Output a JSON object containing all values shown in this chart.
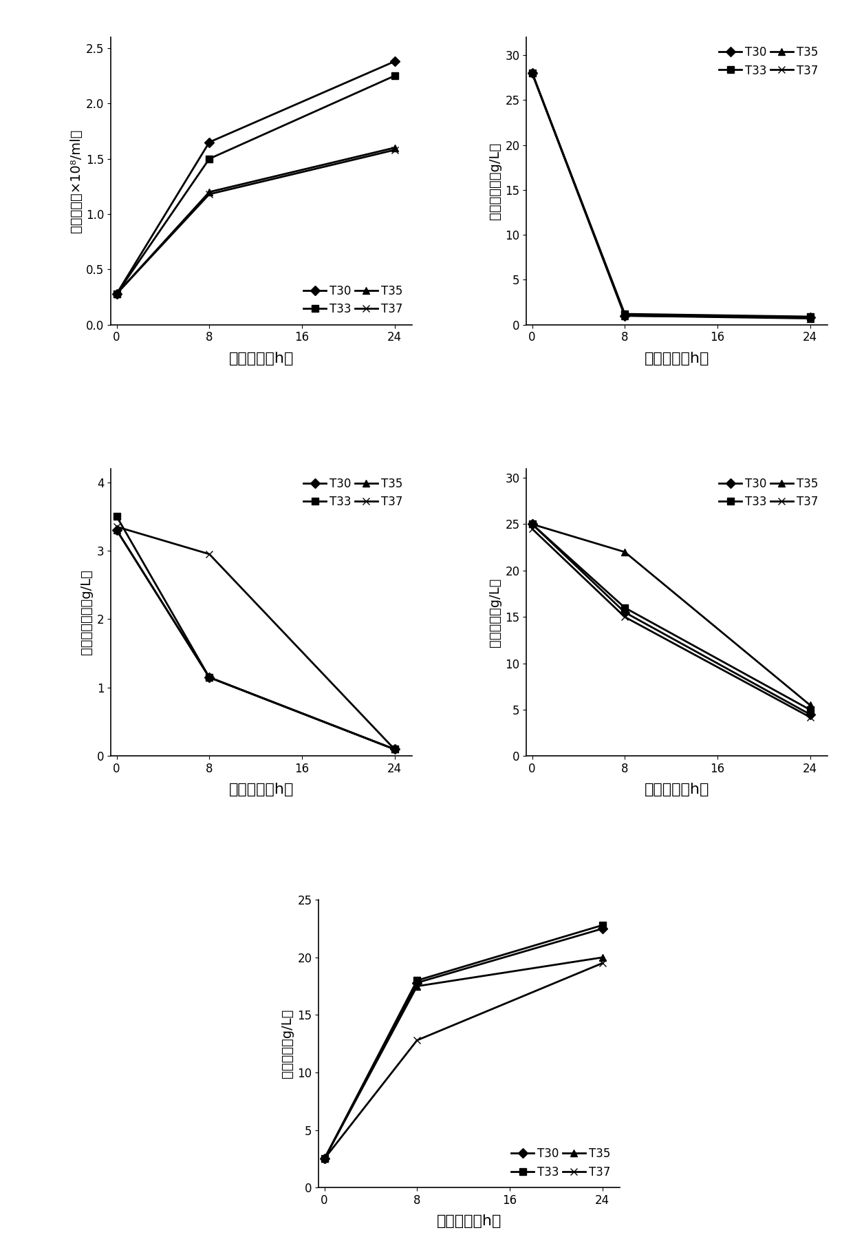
{
  "time": [
    0,
    8,
    24
  ],
  "plot1": {
    "ylabel": "细胞浓度（×10⁸/ml）",
    "ylabel_lines": [
      "细胞浓度",
      "（×10⁸/ml）"
    ],
    "xlabel": "发酵时间（h）",
    "ylim": [
      0,
      2.6
    ],
    "yticks": [
      0.0,
      0.5,
      1.0,
      1.5,
      2.0,
      2.5
    ],
    "xticks": [
      0,
      8,
      16,
      24
    ],
    "legend_loc": "lower right",
    "series": {
      "T30": [
        0.28,
        1.65,
        2.38
      ],
      "T33": [
        0.28,
        1.5,
        2.25
      ],
      "T35": [
        0.28,
        1.2,
        1.6
      ],
      "T37": [
        0.28,
        1.18,
        1.58
      ]
    }
  },
  "plot2": {
    "ylabel": "葡萄糖浓度（g/L）",
    "ylabel_lines": [
      "葡萄糖浓度",
      "（g/L）"
    ],
    "xlabel": "发酵时间（h）",
    "ylim": [
      0,
      32
    ],
    "yticks": [
      0.0,
      5.0,
      10.0,
      15.0,
      20.0,
      25.0,
      30.0
    ],
    "xticks": [
      0,
      8,
      16,
      24
    ],
    "legend_loc": "upper right",
    "series": {
      "T30": [
        28.0,
        1.0,
        0.8
      ],
      "T33": [
        28.0,
        1.2,
        0.9
      ],
      "T35": [
        28.0,
        1.0,
        0.7
      ],
      "T37": [
        28.0,
        1.1,
        0.85
      ]
    }
  },
  "plot3": {
    "ylabel": "纤维二糖浓度（g/L）",
    "ylabel_lines": [
      "纤维二糖浓度",
      "（g/L）"
    ],
    "xlabel": "发酵时间（h）",
    "ylim": [
      0,
      4.2
    ],
    "yticks": [
      0.0,
      1.0,
      2.0,
      3.0,
      4.0
    ],
    "xticks": [
      0,
      8,
      16,
      24
    ],
    "legend_loc": "upper right",
    "series": {
      "T30": [
        3.3,
        1.15,
        0.1
      ],
      "T33": [
        3.5,
        1.15,
        0.1
      ],
      "T35": [
        3.3,
        1.15,
        0.1
      ],
      "T37": [
        3.35,
        2.95,
        0.1
      ]
    }
  },
  "plot4": {
    "ylabel": "木糖浓度（g/L）",
    "ylabel_lines": [
      "木糖浓度",
      "（g/L）"
    ],
    "xlabel": "发酵时间（h）",
    "ylim": [
      0,
      31
    ],
    "yticks": [
      0.0,
      5.0,
      10.0,
      15.0,
      20.0,
      25.0,
      30.0
    ],
    "xticks": [
      0,
      8,
      16,
      24
    ],
    "legend_loc": "upper right",
    "series": {
      "T30": [
        25.0,
        15.5,
        4.5
      ],
      "T33": [
        25.0,
        16.0,
        5.0
      ],
      "T35": [
        25.0,
        22.0,
        5.5
      ],
      "T37": [
        24.5,
        15.0,
        4.2
      ]
    }
  },
  "plot5": {
    "ylabel": "乙醇浓度（g/L）",
    "ylabel_lines": [
      "乙醇浓度",
      "（g/L）"
    ],
    "xlabel": "发酵时间（h）",
    "ylim": [
      0,
      25
    ],
    "yticks": [
      0.0,
      5.0,
      10.0,
      15.0,
      20.0,
      25.0
    ],
    "xticks": [
      0,
      8,
      16,
      24
    ],
    "legend_loc": "lower right",
    "series": {
      "T30": [
        2.5,
        17.8,
        22.5
      ],
      "T33": [
        2.5,
        18.0,
        22.8
      ],
      "T35": [
        2.5,
        17.5,
        20.0
      ],
      "T37": [
        2.5,
        12.8,
        19.5
      ]
    }
  },
  "markers": {
    "T30": "D",
    "T33": "s",
    "T35": "^",
    "T37": "x"
  },
  "legend_labels": [
    "T30",
    "T33",
    "T35",
    "T37"
  ],
  "line_color": "#000000",
  "linewidth": 2.0,
  "markersize": 7,
  "tick_fontsize": 12,
  "label_fontsize": 14,
  "xlabel_fontsize": 16
}
